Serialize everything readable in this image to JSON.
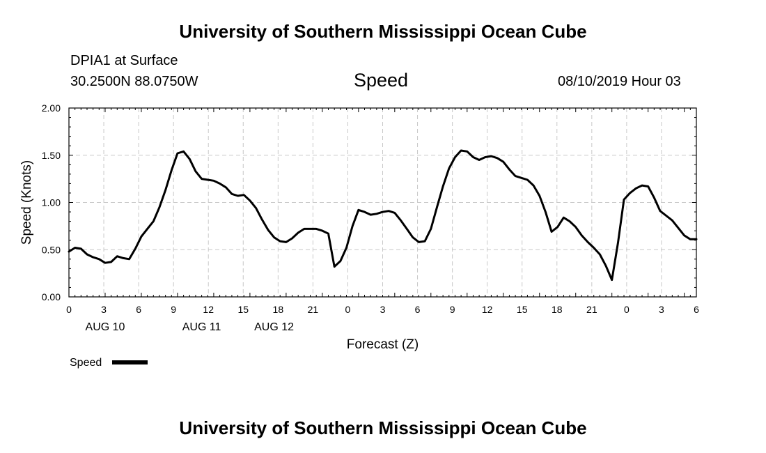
{
  "header": {
    "title": "University of Southern Mississippi Ocean Cube",
    "station": "DPIA1 at Surface",
    "coordinates": "30.2500N 88.0750W",
    "variable": "Speed",
    "datetime": "08/10/2019 Hour 03"
  },
  "footer": {
    "title": "University of Southern Mississippi Ocean Cube"
  },
  "chart_data": {
    "type": "line",
    "xlabel": "Forecast (Z)",
    "ylabel": "Speed (Knots)",
    "ylim": [
      0,
      2
    ],
    "yticks": [
      "0.00",
      "0.50",
      "1.00",
      "1.50",
      "2.00"
    ],
    "xticks": [
      "0",
      "3",
      "6",
      "9",
      "12",
      "15",
      "18",
      "21",
      "0",
      "3",
      "6",
      "9",
      "12",
      "15",
      "18",
      "21",
      "0",
      "3",
      "6"
    ],
    "date_labels": [
      {
        "label": "AUG 10",
        "tick_index": 6
      },
      {
        "label": "AUG 11",
        "tick_index": 22
      },
      {
        "label": "AUG 12",
        "tick_index": 34
      }
    ],
    "grid": true,
    "legend_position": "bottom-left",
    "line_color": "#000000",
    "series": [
      {
        "name": "Speed",
        "values": [
          0.48,
          0.52,
          0.51,
          0.45,
          0.42,
          0.4,
          0.36,
          0.37,
          0.43,
          0.41,
          0.4,
          0.51,
          0.64,
          0.72,
          0.8,
          0.95,
          1.13,
          1.34,
          1.52,
          1.54,
          1.46,
          1.33,
          1.25,
          1.24,
          1.23,
          1.2,
          1.16,
          1.09,
          1.07,
          1.08,
          1.02,
          0.94,
          0.82,
          0.71,
          0.63,
          0.59,
          0.58,
          0.62,
          0.68,
          0.72,
          0.72,
          0.72,
          0.7,
          0.67,
          0.32,
          0.38,
          0.52,
          0.75,
          0.92,
          0.9,
          0.87,
          0.88,
          0.9,
          0.91,
          0.89,
          0.81,
          0.72,
          0.63,
          0.58,
          0.59,
          0.72,
          0.95,
          1.17,
          1.36,
          1.48,
          1.55,
          1.54,
          1.48,
          1.45,
          1.48,
          1.49,
          1.47,
          1.43,
          1.35,
          1.28,
          1.26,
          1.24,
          1.18,
          1.07,
          0.9,
          0.69,
          0.74,
          0.84,
          0.8,
          0.74,
          0.65,
          0.58,
          0.52,
          0.45,
          0.33,
          0.18,
          0.57,
          1.03,
          1.1,
          1.15,
          1.18,
          1.17,
          1.05,
          0.91,
          0.86,
          0.81,
          0.73,
          0.65,
          0.61,
          0.61
        ]
      }
    ]
  }
}
